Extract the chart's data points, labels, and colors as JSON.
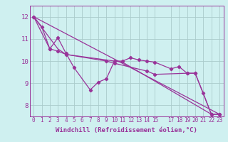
{
  "background_color": "#cff0f0",
  "grid_color": "#aacccc",
  "line_color": "#993399",
  "ylim": [
    7.5,
    12.5
  ],
  "xlim": [
    -0.5,
    23.5
  ],
  "yticks": [
    8,
    9,
    10,
    11,
    12
  ],
  "xticks": [
    0,
    1,
    2,
    3,
    4,
    5,
    6,
    7,
    8,
    9,
    10,
    11,
    12,
    13,
    14,
    15,
    17,
    18,
    19,
    20,
    21,
    22,
    23
  ],
  "xlabel": "Windchill (Refroidissement éolien,°C)",
  "xlabel_color": "#993399",
  "xlabel_bg": "#8800aa",
  "series1": [
    [
      0,
      12.0
    ],
    [
      1,
      11.55
    ],
    [
      2,
      10.55
    ],
    [
      3,
      11.05
    ],
    [
      4,
      10.35
    ],
    [
      5,
      9.7
    ],
    [
      7,
      8.7
    ],
    [
      8,
      9.05
    ],
    [
      9,
      9.2
    ],
    [
      10,
      10.0
    ],
    [
      11,
      10.0
    ],
    [
      12,
      10.15
    ],
    [
      13,
      10.05
    ],
    [
      14,
      10.0
    ],
    [
      15,
      9.95
    ],
    [
      17,
      9.65
    ],
    [
      18,
      9.75
    ],
    [
      19,
      9.45
    ],
    [
      20,
      9.45
    ],
    [
      21,
      8.55
    ],
    [
      22,
      7.6
    ],
    [
      23,
      7.6
    ]
  ],
  "series2": [
    [
      0,
      12.0
    ],
    [
      2,
      10.55
    ],
    [
      3,
      10.45
    ],
    [
      4,
      10.3
    ],
    [
      9,
      10.0
    ],
    [
      10,
      9.9
    ],
    [
      14,
      9.55
    ],
    [
      15,
      9.4
    ],
    [
      19,
      9.45
    ],
    [
      20,
      9.45
    ],
    [
      22,
      7.6
    ],
    [
      23,
      7.6
    ]
  ],
  "series3": [
    [
      0,
      12.0
    ],
    [
      3,
      10.55
    ],
    [
      4,
      10.3
    ],
    [
      10,
      10.0
    ],
    [
      11,
      9.95
    ],
    [
      22,
      7.6
    ],
    [
      23,
      7.6
    ]
  ],
  "series4": [
    [
      0,
      12.0
    ],
    [
      23,
      7.6
    ]
  ]
}
